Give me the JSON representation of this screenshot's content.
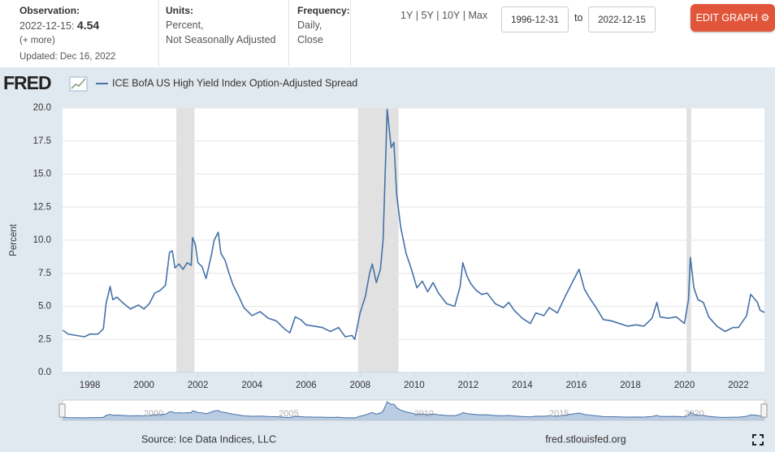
{
  "header": {
    "observation_label": "Observation:",
    "observation_date": "2022-12-15:",
    "observation_value": "4.54",
    "observation_more": "(+ more)",
    "updated": "Updated: Dec 16, 2022",
    "units_label": "Units:",
    "units_line1": "Percent,",
    "units_line2": "Not Seasonally Adjusted",
    "frequency_label": "Frequency:",
    "frequency_line1": "Daily,",
    "frequency_line2": "Close",
    "range_links": [
      "1Y",
      "5Y",
      "10Y",
      "Max"
    ],
    "date_from": "1996-12-31",
    "date_to_label": "to",
    "date_to": "2022-12-15",
    "edit_button": "EDIT GRAPH"
  },
  "logo": "FRED",
  "footer": {
    "source": "Source: Ice Data Indices, LLC",
    "site": "fred.stlouisfed.org"
  },
  "chart_data": {
    "type": "line",
    "ylabel": "Percent",
    "x": [
      1997.0,
      1997.2,
      1997.5,
      1997.8,
      1998.0,
      1998.3,
      1998.5,
      1998.6,
      1998.75,
      1998.85,
      1999.0,
      1999.2,
      1999.5,
      1999.8,
      2000.0,
      2000.2,
      2000.4,
      2000.6,
      2000.8,
      2000.95,
      2001.05,
      2001.15,
      2001.3,
      2001.45,
      2001.6,
      2001.75,
      2001.8,
      2001.9,
      2002.0,
      2002.15,
      2002.3,
      2002.5,
      2002.6,
      2002.75,
      2002.85,
      2003.0,
      2003.15,
      2003.3,
      2003.5,
      2003.7,
      2004.0,
      2004.3,
      2004.6,
      2004.9,
      2005.2,
      2005.4,
      2005.6,
      2005.8,
      2006.0,
      2006.3,
      2006.6,
      2006.9,
      2007.2,
      2007.45,
      2007.7,
      2007.8,
      2008.0,
      2008.2,
      2008.35,
      2008.45,
      2008.6,
      2008.75,
      2008.85,
      2008.95,
      2009.0,
      2009.15,
      2009.25,
      2009.35,
      2009.5,
      2009.7,
      2009.9,
      2010.1,
      2010.3,
      2010.5,
      2010.7,
      2010.9,
      2011.2,
      2011.5,
      2011.7,
      2011.8,
      2011.95,
      2012.1,
      2012.3,
      2012.5,
      2012.7,
      2013.0,
      2013.3,
      2013.5,
      2013.7,
      2014.0,
      2014.3,
      2014.5,
      2014.8,
      2015.0,
      2015.3,
      2015.6,
      2015.9,
      2016.1,
      2016.3,
      2016.5,
      2016.7,
      2017.0,
      2017.3,
      2017.6,
      2017.9,
      2018.2,
      2018.5,
      2018.8,
      2018.98,
      2019.1,
      2019.4,
      2019.7,
      2020.0,
      2020.15,
      2020.22,
      2020.35,
      2020.5,
      2020.7,
      2020.9,
      2021.2,
      2021.5,
      2021.8,
      2022.0,
      2022.3,
      2022.45,
      2022.5,
      2022.7,
      2022.8,
      2022.96
    ],
    "series": [
      {
        "name": "ICE BofA US High Yield Index Option-Adjusted Spread",
        "color": "#4572a7",
        "values": [
          3.2,
          2.9,
          2.8,
          2.7,
          2.9,
          2.9,
          3.3,
          5.2,
          6.5,
          5.5,
          5.7,
          5.3,
          4.8,
          5.1,
          4.8,
          5.2,
          6.0,
          6.2,
          6.6,
          9.1,
          9.2,
          7.9,
          8.2,
          7.8,
          8.3,
          8.1,
          10.2,
          9.7,
          8.3,
          8.0,
          7.1,
          8.9,
          10.0,
          10.6,
          9.0,
          8.5,
          7.5,
          6.6,
          5.8,
          4.9,
          4.3,
          4.6,
          4.1,
          3.9,
          3.3,
          3.0,
          4.2,
          4.0,
          3.6,
          3.5,
          3.4,
          3.1,
          3.4,
          2.7,
          2.8,
          2.5,
          4.5,
          5.8,
          7.5,
          8.2,
          6.8,
          7.8,
          10.0,
          16.5,
          19.9,
          17.0,
          17.4,
          13.5,
          11.0,
          9.0,
          7.8,
          6.4,
          6.9,
          6.1,
          6.8,
          6.0,
          5.2,
          5.0,
          6.5,
          8.3,
          7.3,
          6.7,
          6.2,
          5.9,
          6.0,
          5.2,
          4.9,
          5.3,
          4.7,
          4.1,
          3.7,
          4.5,
          4.3,
          4.9,
          4.5,
          5.8,
          7.0,
          7.8,
          6.3,
          5.6,
          5.0,
          4.0,
          3.9,
          3.7,
          3.5,
          3.6,
          3.5,
          4.1,
          5.3,
          4.2,
          4.1,
          4.2,
          3.7,
          5.5,
          8.7,
          6.4,
          5.5,
          5.3,
          4.2,
          3.5,
          3.1,
          3.4,
          3.4,
          4.3,
          5.9,
          5.8,
          5.3,
          4.7,
          4.54
        ]
      }
    ],
    "xlim": [
      1996.99,
      2022.96
    ],
    "xticks": [
      1998,
      2000,
      2002,
      2004,
      2006,
      2008,
      2010,
      2012,
      2014,
      2016,
      2018,
      2020,
      2022
    ],
    "ylim": [
      0,
      20
    ],
    "yticks": [
      {
        "value": 0,
        "label": "0.0"
      },
      {
        "value": 2.5,
        "label": "2.5"
      },
      {
        "value": 5,
        "label": "5.0"
      },
      {
        "value": 7.5,
        "label": "7.5"
      },
      {
        "value": 10,
        "label": "10.0"
      },
      {
        "value": 12.5,
        "label": "12.5"
      },
      {
        "value": 15,
        "label": "15.0"
      },
      {
        "value": 17.5,
        "label": "17.5"
      },
      {
        "value": 20,
        "label": "20.0"
      }
    ],
    "recessions": [
      [
        2001.2,
        2001.87
      ],
      [
        2007.92,
        2009.42
      ],
      [
        2020.08,
        2020.25
      ]
    ],
    "recession_color": "#e1e1e1",
    "navigator_xticks": [
      2000,
      2005,
      2010,
      2015,
      2020
    ]
  }
}
